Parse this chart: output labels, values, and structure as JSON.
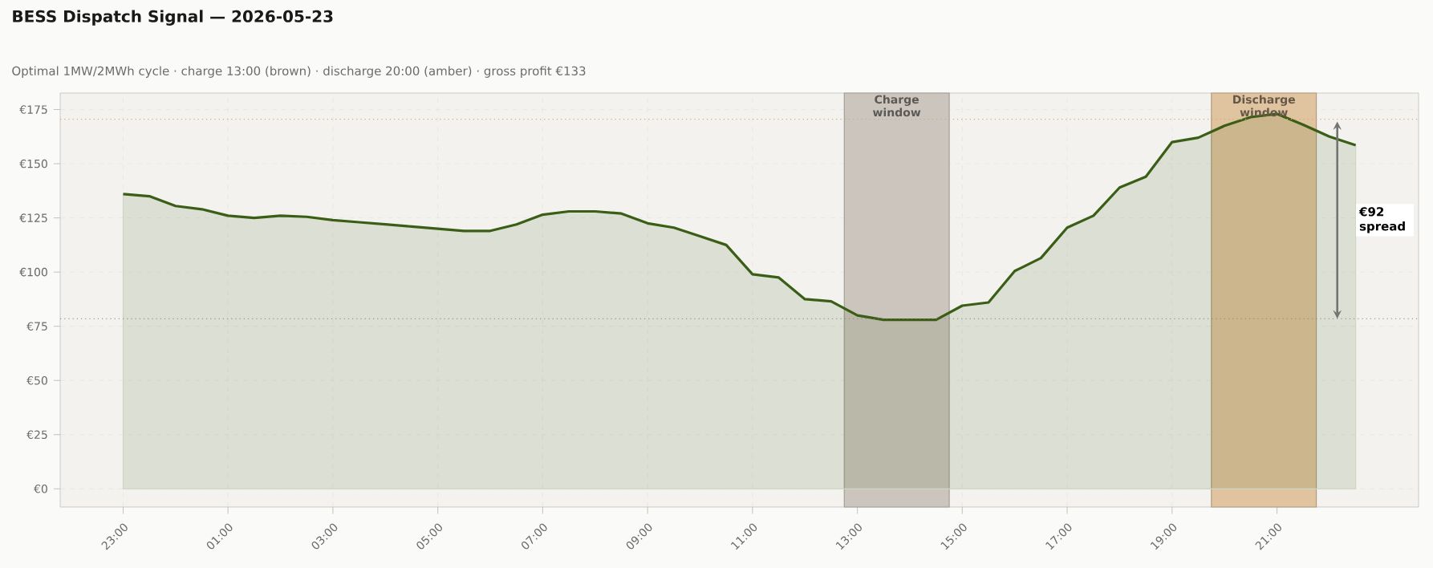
{
  "chart_data": {
    "type": "area",
    "title": "BESS Dispatch Signal — 2026-05-23",
    "subtitle": "Optimal 1MW/2MWh cycle  ·  charge 13:00 (brown)  ·  discharge 20:00 (amber)  ·  gross profit €133",
    "x": [
      "2026-05-22T23:00",
      "2026-05-22T23:30",
      "2026-05-23T00:00",
      "2026-05-23T00:30",
      "2026-05-23T01:00",
      "2026-05-23T01:30",
      "2026-05-23T02:00",
      "2026-05-23T02:30",
      "2026-05-23T03:00",
      "2026-05-23T03:30",
      "2026-05-23T04:00",
      "2026-05-23T04:30",
      "2026-05-23T05:00",
      "2026-05-23T05:30",
      "2026-05-23T06:00",
      "2026-05-23T06:30",
      "2026-05-23T07:00",
      "2026-05-23T07:30",
      "2026-05-23T08:00",
      "2026-05-23T08:30",
      "2026-05-23T09:00",
      "2026-05-23T09:30",
      "2026-05-23T10:00",
      "2026-05-23T10:30",
      "2026-05-23T11:00",
      "2026-05-23T11:30",
      "2026-05-23T12:00",
      "2026-05-23T12:30",
      "2026-05-23T13:00",
      "2026-05-23T13:30",
      "2026-05-23T14:00",
      "2026-05-23T14:30",
      "2026-05-23T15:00",
      "2026-05-23T15:30",
      "2026-05-23T16:00",
      "2026-05-23T16:30",
      "2026-05-23T17:00",
      "2026-05-23T17:30",
      "2026-05-23T18:00",
      "2026-05-23T18:30",
      "2026-05-23T19:00",
      "2026-05-23T19:30",
      "2026-05-23T20:00",
      "2026-05-23T20:30",
      "2026-05-23T21:00",
      "2026-05-23T21:30",
      "2026-05-23T22:00",
      "2026-05-23T22:30"
    ],
    "values": [
      136,
      135,
      130.5,
      129,
      126,
      125,
      126,
      125.5,
      124,
      123,
      122,
      121,
      120,
      119,
      119,
      122,
      126.5,
      128,
      128,
      127,
      122.5,
      120.5,
      116.5,
      112.5,
      99,
      97.5,
      87.5,
      86.5,
      80,
      78,
      78,
      78,
      84.5,
      86,
      100.5,
      106.5,
      120.5,
      126,
      139,
      144,
      160,
      162,
      167.5,
      171.5,
      173,
      168,
      162.5,
      158.5
    ],
    "color": "#3a5e16",
    "xlim": [
      "2026-05-22T21:48",
      "2026-05-23T23:42"
    ],
    "ylim": [
      -8.4,
      182.6
    ],
    "xticks": [
      {
        "value": "2026-05-22T23:00",
        "label": "23:00"
      },
      {
        "value": "2026-05-23T01:00",
        "label": "01:00"
      },
      {
        "value": "2026-05-23T03:00",
        "label": "03:00"
      },
      {
        "value": "2026-05-23T05:00",
        "label": "05:00"
      },
      {
        "value": "2026-05-23T07:00",
        "label": "07:00"
      },
      {
        "value": "2026-05-23T09:00",
        "label": "09:00"
      },
      {
        "value": "2026-05-23T11:00",
        "label": "11:00"
      },
      {
        "value": "2026-05-23T13:00",
        "label": "13:00"
      },
      {
        "value": "2026-05-23T15:00",
        "label": "15:00"
      },
      {
        "value": "2026-05-23T17:00",
        "label": "17:00"
      },
      {
        "value": "2026-05-23T19:00",
        "label": "19:00"
      },
      {
        "value": "2026-05-23T21:00",
        "label": "21:00"
      }
    ],
    "yticks": [
      {
        "value": 0,
        "label": "€0"
      },
      {
        "value": 25,
        "label": "€25"
      },
      {
        "value": 50,
        "label": "€50"
      },
      {
        "value": 75,
        "label": "€75"
      },
      {
        "value": 100,
        "label": "€100"
      },
      {
        "value": 125,
        "label": "€125"
      },
      {
        "value": 150,
        "label": "€150"
      },
      {
        "value": 175,
        "label": "€175"
      }
    ],
    "grid": true,
    "bands": [
      {
        "axis": "x",
        "from": "2026-05-23T12:45",
        "to": "2026-05-23T14:45",
        "label": "Charge window",
        "color": "#cbc5bd"
      },
      {
        "axis": "x",
        "from": "2026-05-23T19:45",
        "to": "2026-05-23T21:45",
        "label": "Discharge window",
        "color": "#e0c39f"
      }
    ],
    "ref_lines": [
      {
        "axis": "y",
        "value": 170.5,
        "color": "#d9a877",
        "line_style": "dotted"
      },
      {
        "axis": "y",
        "value": 78.5,
        "color": "#8a8378",
        "line_style": "dotted"
      }
    ],
    "annotations": [
      {
        "text": "€92 spread",
        "x": "2026-05-23T22:30",
        "y": 124
      }
    ]
  }
}
